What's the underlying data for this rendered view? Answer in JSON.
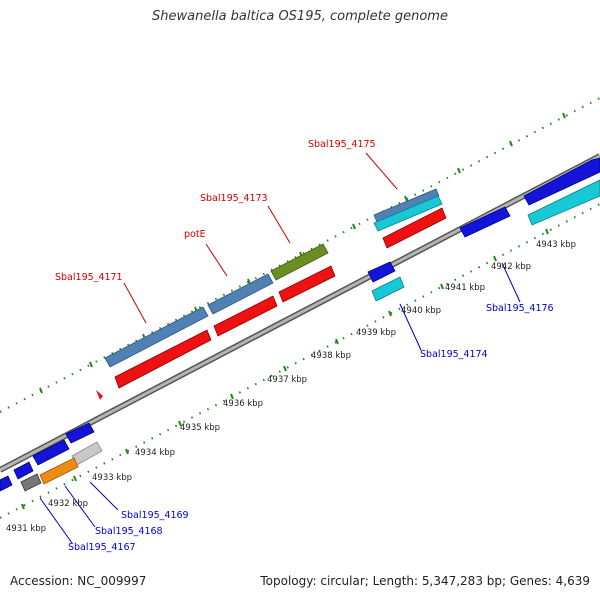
{
  "title": "Shewanella baltica OS195, complete genome",
  "footer": {
    "accession": "Accession: NC_009997",
    "summary": "Topology: circular; Length: 5,347,283 bp; Genes: 4,639"
  },
  "colors": {
    "backbone": "#8c8c8c",
    "tick": "#1a8a1a",
    "steelblue": "#4f81b4",
    "red": "#ee1111",
    "olive": "#6b8e23",
    "blue": "#1414d8",
    "cyan": "#17c8d6",
    "orange": "#f08c14",
    "grey": "#777777",
    "lightgrey": "#c8c8c8",
    "label_red": "#cc0000",
    "label_blue": "#0000cc"
  },
  "scale_labels": [
    "4931 kbp",
    "4932 kbp",
    "4933 kbp",
    "4934 kbp",
    "4935 kbp",
    "4936 kbp",
    "4937 kbp",
    "4938 kbp",
    "4939 kbp",
    "4940 kbp",
    "4941 kbp",
    "4942 kbp",
    "4943 kbp"
  ],
  "gene_labels_top": [
    "Sbal195_4171",
    "potE",
    "Sbal195_4173",
    "Sbal195_4175"
  ],
  "gene_labels_bottom": [
    "Sbal195_4174",
    "Sbal195_4176",
    "Sbal195_4169",
    "Sbal195_4168",
    "Sbal195_4167"
  ]
}
